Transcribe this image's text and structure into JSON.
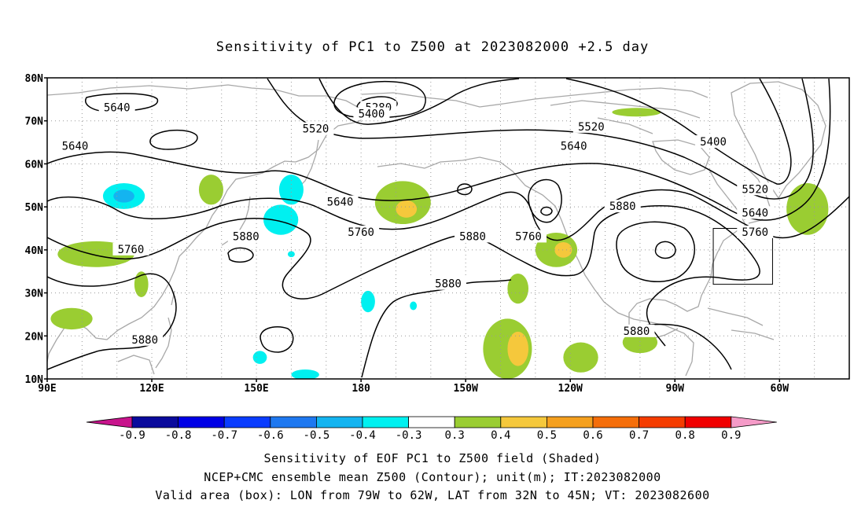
{
  "title": "Sensitivity of PC1 to Z500 at 2023082000 +2.5 day",
  "lat_labels": [
    "80N",
    "70N",
    "60N",
    "50N",
    "40N",
    "30N",
    "20N",
    "10N"
  ],
  "lon_labels": [
    "90E",
    "120E",
    "150E",
    "180",
    "150W",
    "120W",
    "90W",
    "60W"
  ],
  "contour_labels": [
    {
      "text": "5640",
      "lon": 110,
      "lat": 73
    },
    {
      "text": "5640",
      "lon": 98,
      "lat": 64
    },
    {
      "text": "5760",
      "lon": 114,
      "lat": 40
    },
    {
      "text": "5880",
      "lon": 118,
      "lat": 19
    },
    {
      "text": "5880",
      "lon": 147,
      "lat": 43
    },
    {
      "text": "5520",
      "lon": 167,
      "lat": 68
    },
    {
      "text": "5640",
      "lon": 174,
      "lat": 51
    },
    {
      "text": "5280",
      "lon": 185,
      "lat": 73
    },
    {
      "text": "5400",
      "lon": 183,
      "lat": 71.5
    },
    {
      "text": "5760",
      "lon": 180,
      "lat": 44
    },
    {
      "text": "5880",
      "lon": 212,
      "lat": 43
    },
    {
      "text": "5880",
      "lon": 205,
      "lat": 32
    },
    {
      "text": "5760",
      "lon": 228,
      "lat": 43
    },
    {
      "text": "5520",
      "lon": 246,
      "lat": 68.5
    },
    {
      "text": "5640",
      "lon": 241,
      "lat": 64
    },
    {
      "text": "5880",
      "lon": 255,
      "lat": 50
    },
    {
      "text": "5880",
      "lon": 259,
      "lat": 21
    },
    {
      "text": "5400",
      "lon": 281,
      "lat": 65
    },
    {
      "text": "5520",
      "lon": 293,
      "lat": 54
    },
    {
      "text": "5640",
      "lon": 293,
      "lat": 48.5
    },
    {
      "text": "5760",
      "lon": 293,
      "lat": 44
    }
  ],
  "colorbar": {
    "labels": [
      "-0.9",
      "-0.8",
      "-0.7",
      "-0.6",
      "-0.5",
      "-0.4",
      "-0.3",
      "0.3",
      "0.4",
      "0.5",
      "0.6",
      "0.7",
      "0.8",
      "0.9"
    ],
    "colors": [
      "#0a0a9c",
      "#0000e6",
      "#0a3cff",
      "#1e78f0",
      "#14b4f0",
      "#00f0f0",
      "#ffffff",
      "#9acd32",
      "#f5c83c",
      "#f5a01e",
      "#f56e0a",
      "#f53c00",
      "#f00000"
    ],
    "low_end_color": "#c8148c",
    "high_end_color": "#f59bc8"
  },
  "captions": [
    "Sensitivity of EOF PC1 to Z500 field (Shaded)",
    "NCEP+CMC ensemble mean Z500 (Contour); unit(m); IT:2023082000",
    "Valid area (box): LON from 79W to 62W, LAT from 32N to 45N; VT: 2023082600"
  ],
  "valid_box": {
    "lon_min": -79,
    "lon_max": -62,
    "lat_min": 32,
    "lat_max": 45
  },
  "map_extent": {
    "lon_min": 90,
    "lon_max": 320,
    "lat_min": 10,
    "lat_max": 80
  },
  "sensitivity_blobs": [
    {
      "lon": 112,
      "lat": 52.5,
      "rx": 6,
      "ry": 3,
      "level": -0.4
    },
    {
      "lon": 112,
      "lat": 52.5,
      "rx": 3,
      "ry": 1.5,
      "level": -0.5
    },
    {
      "lon": 137,
      "lat": 54,
      "rx": 3.5,
      "ry": 3.5,
      "level": 0.3
    },
    {
      "lon": 160,
      "lat": 54,
      "rx": 3.5,
      "ry": 3.5,
      "level": -0.4
    },
    {
      "lon": 157,
      "lat": 47,
      "rx": 5,
      "ry": 3.5,
      "level": -0.4
    },
    {
      "lon": 160,
      "lat": 39,
      "rx": 1,
      "ry": 0.7,
      "level": -0.4
    },
    {
      "lon": 182,
      "lat": 28,
      "rx": 2,
      "ry": 2.5,
      "level": -0.4
    },
    {
      "lon": 195,
      "lat": 27,
      "rx": 1,
      "ry": 1,
      "level": -0.4
    },
    {
      "lon": 151,
      "lat": 15,
      "rx": 2,
      "ry": 1.5,
      "level": -0.4
    },
    {
      "lon": 164,
      "lat": 11,
      "rx": 4,
      "ry": 1.2,
      "level": -0.4
    },
    {
      "lon": 104,
      "lat": 39,
      "rx": 11,
      "ry": 3,
      "level": 0.3
    },
    {
      "lon": 117,
      "lat": 32,
      "rx": 2,
      "ry": 3,
      "level": 0.3
    },
    {
      "lon": 97,
      "lat": 24,
      "rx": 6,
      "ry": 2.5,
      "level": 0.3
    },
    {
      "lon": 192,
      "lat": 51,
      "rx": 8,
      "ry": 5,
      "level": 0.3
    },
    {
      "lon": 193,
      "lat": 49.5,
      "rx": 3,
      "ry": 2,
      "level": 0.4
    },
    {
      "lon": 236,
      "lat": 40,
      "rx": 6,
      "ry": 4,
      "level": 0.3
    },
    {
      "lon": 238,
      "lat": 40,
      "rx": 2.5,
      "ry": 1.8,
      "level": 0.4
    },
    {
      "lon": 225,
      "lat": 31,
      "rx": 3,
      "ry": 3.5,
      "level": 0.3
    },
    {
      "lon": 222,
      "lat": 17,
      "rx": 7,
      "ry": 7,
      "level": 0.3
    },
    {
      "lon": 225,
      "lat": 17,
      "rx": 3,
      "ry": 4,
      "level": 0.4
    },
    {
      "lon": 243,
      "lat": 15,
      "rx": 5,
      "ry": 3.5,
      "level": 0.3
    },
    {
      "lon": 260,
      "lat": 18.5,
      "rx": 5,
      "ry": 2.5,
      "level": 0.3
    },
    {
      "lon": 259,
      "lat": 72,
      "rx": 7,
      "ry": 1,
      "level": 0.3
    },
    {
      "lon": 308,
      "lat": 49.5,
      "rx": 6,
      "ry": 6,
      "level": 0.3
    }
  ]
}
